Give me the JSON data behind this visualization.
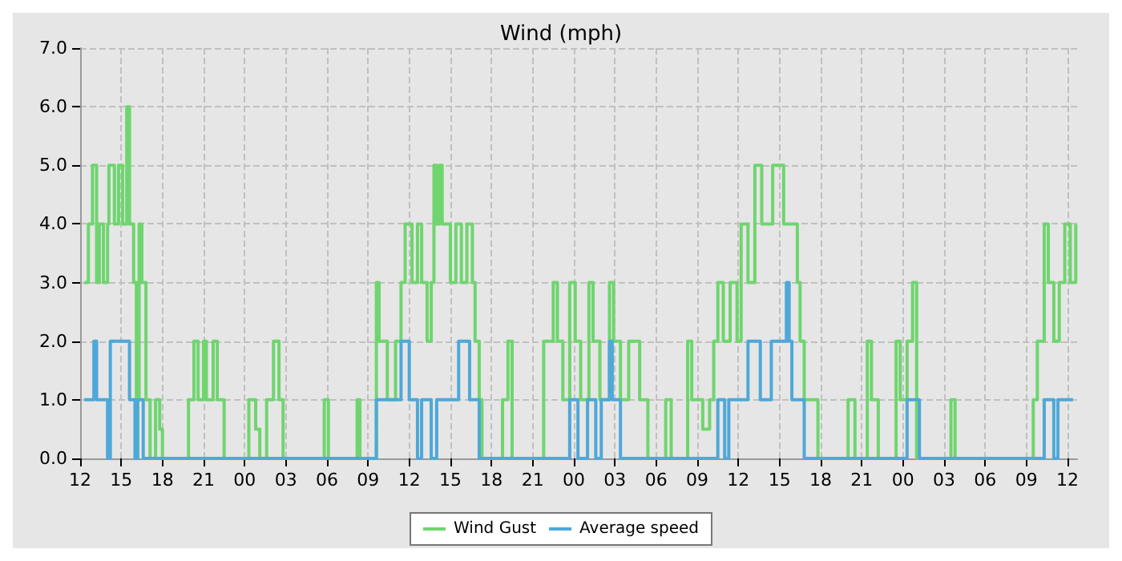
{
  "chart_data": {
    "type": "step",
    "title": "Wind (mph)",
    "xlim": [
      12,
      84.7
    ],
    "ylim": [
      0,
      7
    ],
    "xticks": [
      {
        "value": 12,
        "label": "12"
      },
      {
        "value": 15,
        "label": "15"
      },
      {
        "value": 18,
        "label": "18"
      },
      {
        "value": 21,
        "label": "21"
      },
      {
        "value": 24,
        "label": "00"
      },
      {
        "value": 27,
        "label": "03"
      },
      {
        "value": 30,
        "label": "06"
      },
      {
        "value": 33,
        "label": "09"
      },
      {
        "value": 36,
        "label": "12"
      },
      {
        "value": 39,
        "label": "15"
      },
      {
        "value": 42,
        "label": "18"
      },
      {
        "value": 45,
        "label": "21"
      },
      {
        "value": 48,
        "label": "00"
      },
      {
        "value": 51,
        "label": "03"
      },
      {
        "value": 54,
        "label": "06"
      },
      {
        "value": 57,
        "label": "09"
      },
      {
        "value": 60,
        "label": "12"
      },
      {
        "value": 63,
        "label": "15"
      },
      {
        "value": 66,
        "label": "18"
      },
      {
        "value": 69,
        "label": "21"
      },
      {
        "value": 72,
        "label": "00"
      },
      {
        "value": 75,
        "label": "03"
      },
      {
        "value": 78,
        "label": "06"
      },
      {
        "value": 81,
        "label": "09"
      },
      {
        "value": 84,
        "label": "12"
      }
    ],
    "yticks": [
      {
        "value": 0,
        "label": "0.0"
      },
      {
        "value": 1,
        "label": "1.0"
      },
      {
        "value": 2,
        "label": "2.0"
      },
      {
        "value": 3,
        "label": "3.0"
      },
      {
        "value": 4,
        "label": "4.0"
      },
      {
        "value": 5,
        "label": "5.0"
      },
      {
        "value": 6,
        "label": "6.0"
      },
      {
        "value": 7,
        "label": "7.0"
      }
    ],
    "grid": true,
    "legend": "bottom",
    "marker": "none",
    "line_style": "solid",
    "series": [
      {
        "name": "Wind Gust",
        "color": "#6fd56f",
        "x": [
          12.3,
          12.6,
          12.9,
          13.2,
          13.4,
          13.7,
          14.0,
          14.1,
          14.5,
          14.8,
          15.1,
          15.4,
          15.6,
          15.9,
          16.1,
          16.3,
          16.5,
          16.8,
          17.1,
          17.5,
          17.8,
          18.0,
          19.9,
          20.3,
          20.6,
          21.0,
          21.2,
          21.7,
          22.0,
          22.5,
          24.3,
          24.8,
          25.1,
          25.6,
          26.1,
          26.5,
          26.8,
          29.8,
          30.1,
          32.2,
          32.4,
          33.6,
          33.8,
          34.4,
          35.0,
          35.4,
          35.7,
          36.2,
          36.6,
          36.9,
          37.3,
          37.6,
          37.8,
          38.0,
          38.2,
          38.4,
          39.0,
          39.4,
          39.8,
          40.2,
          40.6,
          40.8,
          41.1,
          41.3,
          42.8,
          43.2,
          43.5,
          45.8,
          46.5,
          46.8,
          47.2,
          47.7,
          48.1,
          48.5,
          49.1,
          49.4,
          49.9,
          50.6,
          50.9,
          51.4,
          52.0,
          52.8,
          53.4,
          54.7,
          55.1,
          56.3,
          56.6,
          57.4,
          57.9,
          58.2,
          58.5,
          58.9,
          59.4,
          59.9,
          60.2,
          60.7,
          61.2,
          61.7,
          62.5,
          63.3,
          64.3,
          64.5,
          64.8,
          65.8,
          68.0,
          68.5,
          69.4,
          69.7,
          70.2,
          71.5,
          71.8,
          72.3,
          72.7,
          73.0,
          75.5,
          75.8,
          81.5,
          81.8,
          82.3,
          82.6,
          83.0,
          83.4,
          83.8,
          84.2,
          84.6
        ],
        "values": [
          3,
          4,
          5,
          3,
          4,
          3,
          4,
          5,
          4,
          5,
          4,
          6,
          4,
          3,
          1,
          4,
          3,
          1,
          0,
          1,
          0.5,
          0,
          1,
          2,
          1,
          2,
          1,
          2,
          1,
          0,
          1,
          0.5,
          0,
          1,
          2,
          1,
          0,
          1,
          0,
          1,
          0,
          3,
          2,
          1,
          2,
          3,
          4,
          3,
          4,
          3,
          2,
          3,
          5,
          4,
          5,
          4,
          3,
          4,
          3,
          4,
          3,
          2,
          1,
          0,
          1,
          2,
          0,
          2,
          3,
          2,
          1,
          3,
          2,
          1,
          3,
          2,
          1,
          3,
          2,
          1,
          2,
          1,
          0,
          1,
          0,
          2,
          1,
          0.5,
          1,
          2,
          3,
          2,
          3,
          2,
          4,
          3,
          5,
          4,
          5,
          4,
          3,
          2,
          1,
          0,
          1,
          0,
          2,
          1,
          0,
          2,
          1,
          2,
          3,
          0,
          1,
          0,
          1,
          2,
          4,
          3,
          2,
          3,
          4,
          3,
          4
        ]
      },
      {
        "name": "Average speed",
        "color": "#4ea8d8",
        "x": [
          12.3,
          13.0,
          13.2,
          14.0,
          14.2,
          15.6,
          16.0,
          16.2,
          16.6,
          33.6,
          35.4,
          36.0,
          36.6,
          36.9,
          37.6,
          38.0,
          39.6,
          40.4,
          41.1,
          47.7,
          48.3,
          49.0,
          49.6,
          50.0,
          50.6,
          50.8,
          51.4,
          58.5,
          59.0,
          59.3,
          60.7,
          61.6,
          62.4,
          63.5,
          63.7,
          63.9,
          64.8,
          72.3,
          73.2,
          82.3,
          83.0,
          83.3,
          84.4
        ],
        "values": [
          1,
          2,
          1,
          0,
          2,
          1,
          0,
          1,
          0,
          1,
          2,
          1,
          0,
          1,
          0,
          1,
          2,
          1,
          0,
          1,
          0,
          1,
          0,
          1,
          2,
          1,
          0,
          1,
          0,
          1,
          2,
          1,
          2,
          3,
          2,
          1,
          0,
          1,
          0,
          1,
          0,
          1,
          1
        ]
      }
    ]
  }
}
